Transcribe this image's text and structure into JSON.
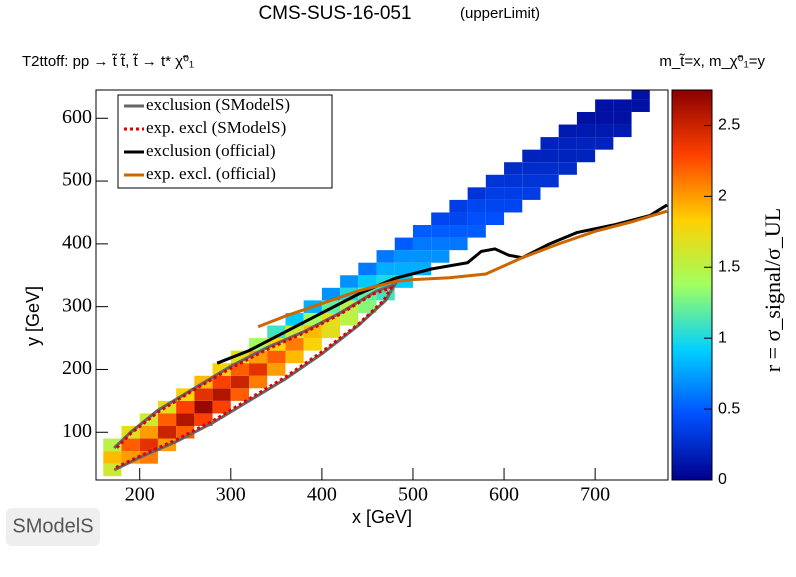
{
  "chart_data": {
    "type": "heatmap",
    "title": "CMS-SUS-16-051",
    "title_note": "(upperLimit)",
    "subtitle": "T2ttoff: pp → t̃ t̃, t̃ → t* χ̃⁰₁",
    "mass_note": "m_t̃=x, m_χ̃⁰₁=y",
    "x_label": "x [GeV]",
    "y_label": "y [GeV]",
    "z_label": "r = σ_signal/σ_UL",
    "xlim": [
      152,
      780
    ],
    "ylim": [
      24,
      645
    ],
    "zlim": [
      0,
      2.75
    ],
    "xticks": [
      200,
      300,
      400,
      500,
      600,
      700
    ],
    "yticks": [
      100,
      200,
      300,
      400,
      500,
      600
    ],
    "zticks": [
      0,
      0.5,
      1,
      1.5,
      2,
      2.5
    ],
    "colorscale": [
      "#00008b",
      "#0050ff",
      "#00d0ff",
      "#a0ff60",
      "#ffd000",
      "#ff4000",
      "#8b0000"
    ],
    "columns": [
      {
        "x": 170,
        "y": [
          40,
          60,
          80
        ],
        "values": [
          1.6,
          1.9,
          1.5
        ]
      },
      {
        "x": 190,
        "y": [
          60,
          80,
          100
        ],
        "values": [
          2.0,
          2.2,
          1.7
        ]
      },
      {
        "x": 210,
        "y": [
          60,
          80,
          100,
          120
        ],
        "values": [
          2.1,
          2.4,
          2.0,
          1.6
        ]
      },
      {
        "x": 230,
        "y": [
          80,
          100,
          120,
          140
        ],
        "values": [
          2.0,
          2.5,
          2.2,
          1.7
        ]
      },
      {
        "x": 250,
        "y": [
          100,
          120,
          140,
          160
        ],
        "values": [
          2.2,
          2.6,
          2.3,
          1.8
        ]
      },
      {
        "x": 270,
        "y": [
          120,
          140,
          160,
          180
        ],
        "values": [
          2.3,
          2.7,
          2.4,
          1.9
        ]
      },
      {
        "x": 290,
        "y": [
          140,
          160,
          180,
          200
        ],
        "values": [
          2.3,
          2.6,
          2.3,
          1.8
        ]
      },
      {
        "x": 310,
        "y": [
          160,
          180,
          200,
          220
        ],
        "values": [
          2.2,
          2.5,
          2.2,
          1.7
        ]
      },
      {
        "x": 330,
        "y": [
          180,
          200,
          220,
          240
        ],
        "values": [
          2.1,
          2.4,
          2.0,
          1.4
        ]
      },
      {
        "x": 350,
        "y": [
          200,
          220,
          240,
          260
        ],
        "values": [
          2.0,
          2.2,
          1.8,
          1.1
        ]
      },
      {
        "x": 370,
        "y": [
          220,
          240,
          260,
          280
        ],
        "values": [
          1.9,
          2.1,
          1.6,
          0.9
        ]
      },
      {
        "x": 390,
        "y": [
          240,
          260,
          280,
          300
        ],
        "values": [
          1.8,
          1.9,
          1.4,
          0.8
        ]
      },
      {
        "x": 410,
        "y": [
          260,
          280,
          300,
          320
        ],
        "values": [
          1.7,
          1.7,
          1.2,
          0.7
        ]
      },
      {
        "x": 430,
        "y": [
          280,
          300,
          320,
          340
        ],
        "values": [
          1.5,
          1.5,
          1.0,
          0.7
        ]
      },
      {
        "x": 450,
        "y": [
          300,
          320,
          340,
          360
        ],
        "values": [
          1.3,
          1.2,
          0.9,
          0.6
        ]
      },
      {
        "x": 470,
        "y": [
          320,
          340,
          360,
          380
        ],
        "values": [
          1.1,
          1.0,
          0.8,
          0.6
        ]
      },
      {
        "x": 490,
        "y": [
          340,
          360,
          380,
          400
        ],
        "values": [
          0.9,
          0.8,
          0.7,
          0.5
        ]
      },
      {
        "x": 510,
        "y": [
          360,
          380,
          400,
          420
        ],
        "values": [
          0.8,
          0.7,
          0.6,
          0.5
        ]
      },
      {
        "x": 530,
        "y": [
          380,
          400,
          420,
          440
        ],
        "values": [
          0.7,
          0.6,
          0.5,
          0.4
        ]
      },
      {
        "x": 550,
        "y": [
          400,
          420,
          440,
          460
        ],
        "values": [
          0.6,
          0.5,
          0.4,
          0.35
        ]
      },
      {
        "x": 570,
        "y": [
          420,
          440,
          460,
          480
        ],
        "values": [
          0.5,
          0.45,
          0.4,
          0.3
        ]
      },
      {
        "x": 590,
        "y": [
          440,
          460,
          480,
          500
        ],
        "values": [
          0.45,
          0.4,
          0.35,
          0.3
        ]
      },
      {
        "x": 610,
        "y": [
          460,
          480,
          500,
          520
        ],
        "values": [
          0.4,
          0.35,
          0.3,
          0.25
        ]
      },
      {
        "x": 630,
        "y": [
          480,
          500,
          520,
          540
        ],
        "values": [
          0.35,
          0.3,
          0.25,
          0.2
        ]
      },
      {
        "x": 650,
        "y": [
          500,
          520,
          540,
          560
        ],
        "values": [
          0.3,
          0.25,
          0.2,
          0.2
        ]
      },
      {
        "x": 670,
        "y": [
          520,
          540,
          560,
          580
        ],
        "values": [
          0.25,
          0.2,
          0.2,
          0.15
        ]
      },
      {
        "x": 690,
        "y": [
          540,
          560,
          580,
          600
        ],
        "values": [
          0.2,
          0.2,
          0.15,
          0.1
        ]
      },
      {
        "x": 710,
        "y": [
          560,
          580,
          600,
          620
        ],
        "values": [
          0.2,
          0.15,
          0.1,
          0.1
        ]
      },
      {
        "x": 730,
        "y": [
          580,
          600,
          620
        ],
        "values": [
          0.15,
          0.1,
          0.1
        ]
      },
      {
        "x": 750,
        "y": [
          620,
          640
        ],
        "values": [
          0.1,
          0.1
        ]
      }
    ],
    "series": [
      {
        "name": "exclusion (SModelS)",
        "color": "#666666",
        "dash": "none",
        "x": [
          172,
          200,
          240,
          280,
          320,
          360,
          400,
          440,
          470,
          480,
          460,
          420,
          380,
          340,
          300,
          260,
          220,
          190,
          172
        ],
        "y": [
          40,
          60,
          85,
          115,
          150,
          185,
          225,
          270,
          310,
          335,
          325,
          290,
          260,
          235,
          205,
          170,
          135,
          100,
          75
        ]
      },
      {
        "name": "exp. excl (SModelS)",
        "color": "#e00000",
        "dash": "3 3",
        "x": [
          174,
          200,
          240,
          280,
          320,
          360,
          400,
          440,
          468,
          476,
          456,
          420,
          380,
          340,
          300,
          260,
          220,
          190,
          174
        ],
        "y": [
          44,
          62,
          88,
          118,
          153,
          188,
          228,
          272,
          310,
          330,
          320,
          288,
          258,
          232,
          202,
          168,
          132,
          98,
          74
        ]
      },
      {
        "name": "exclusion (official)",
        "color": "#000000",
        "dash": "none",
        "x": [
          285,
          320,
          360,
          400,
          440,
          480,
          520,
          560,
          575,
          590,
          605,
          620,
          650,
          680,
          720,
          760,
          779
        ],
        "y": [
          210,
          230,
          260,
          290,
          320,
          345,
          360,
          370,
          388,
          392,
          382,
          378,
          400,
          418,
          430,
          445,
          462
        ]
      },
      {
        "name": "exp. excl. (official)",
        "color": "#cc6600",
        "dash": "none",
        "x": [
          330,
          360,
          400,
          440,
          480,
          500,
          540,
          580,
          620,
          660,
          700,
          740,
          779
        ],
        "y": [
          268,
          285,
          305,
          325,
          340,
          343,
          346,
          352,
          378,
          400,
          420,
          435,
          452
        ]
      }
    ]
  },
  "logo": "SModelS"
}
